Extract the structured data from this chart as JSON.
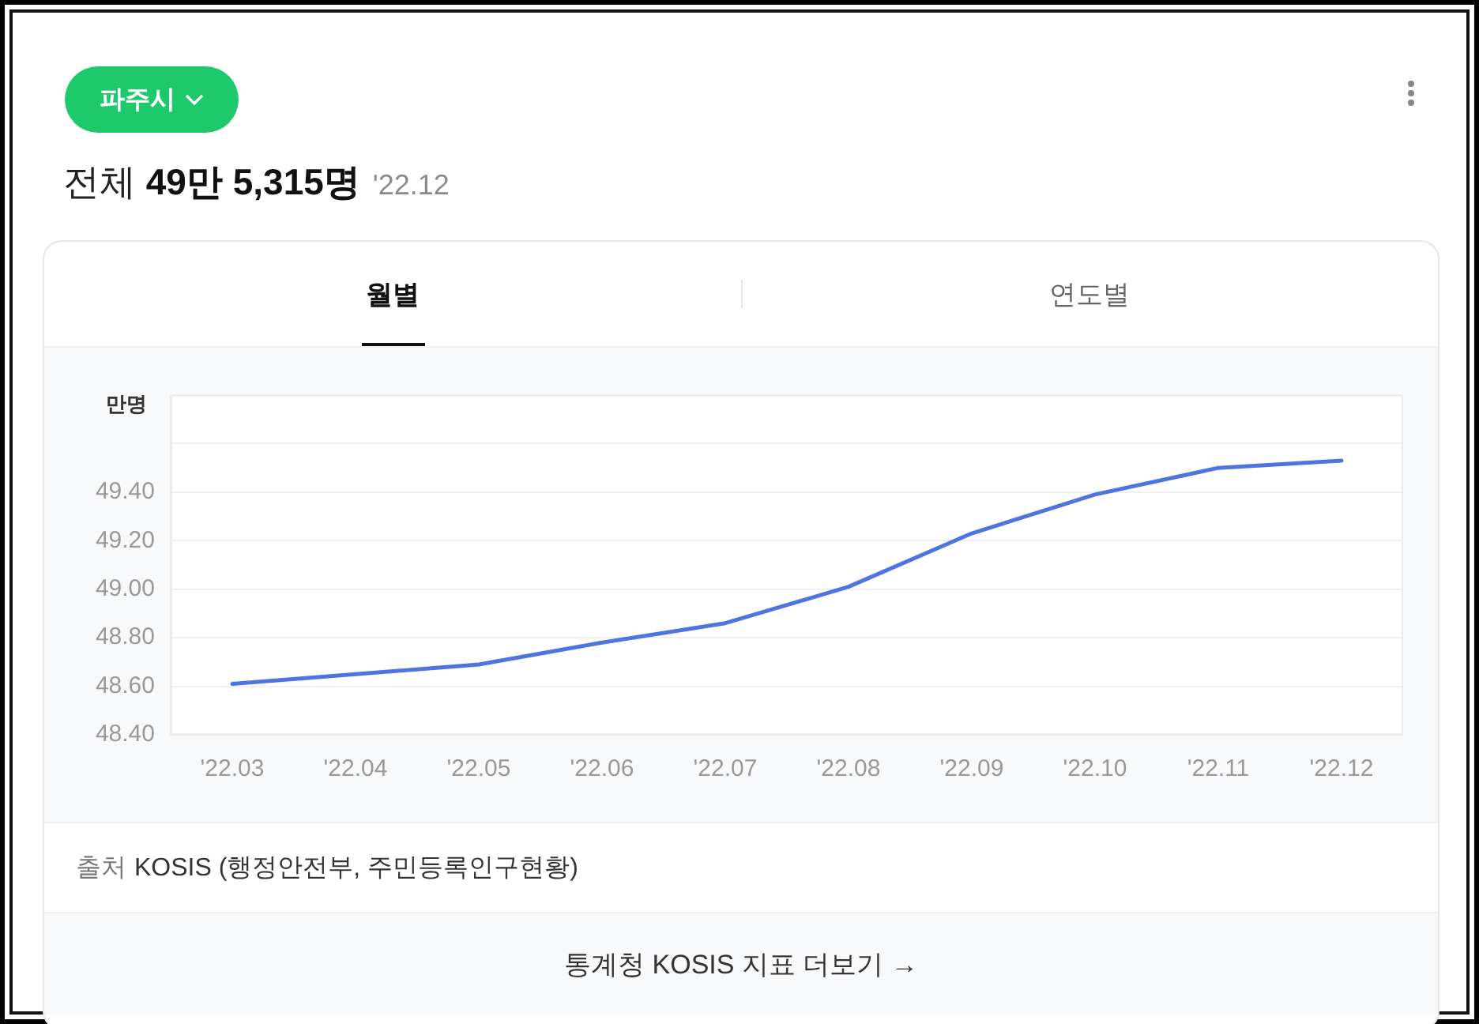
{
  "chart_data": {
    "type": "line",
    "title": "전체 49만 5,315명",
    "subtitle": "'22.12",
    "ylabel": "만명",
    "categories": [
      "'22.03",
      "'22.04",
      "'22.05",
      "'22.06",
      "'22.07",
      "'22.08",
      "'22.09",
      "'22.10",
      "'22.11",
      "'22.12"
    ],
    "values": [
      48.61,
      48.65,
      48.69,
      48.78,
      48.86,
      49.01,
      49.23,
      49.39,
      49.5,
      49.53
    ],
    "color": "#4d74df",
    "ylim": [
      48.4,
      49.8
    ],
    "yticks": [
      {
        "value": 48.4,
        "label": "48.40"
      },
      {
        "value": 48.6,
        "label": "48.60"
      },
      {
        "value": 48.8,
        "label": "48.80"
      },
      {
        "value": 49.0,
        "label": "49.00"
      },
      {
        "value": 49.2,
        "label": "49.20"
      },
      {
        "value": 49.4,
        "label": "49.40"
      },
      {
        "value": 49.6,
        "label": null
      },
      {
        "value": 49.8,
        "label": null
      }
    ],
    "grid": "y",
    "line_style": "solid",
    "annotations": [
      "파주시",
      "월별",
      "연도별",
      "출처 KOSIS (행정안전부, 주민등록인구현황)",
      "통계청 KOSIS 지표 더보기 →"
    ]
  }
}
